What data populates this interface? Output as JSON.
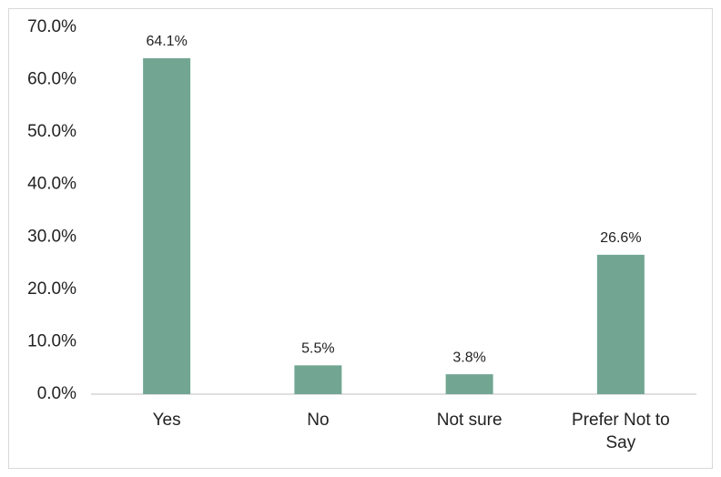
{
  "chart_data": {
    "type": "bar",
    "categories": [
      "Yes",
      "No",
      "Not sure",
      "Prefer Not to Say"
    ],
    "values": [
      64.1,
      5.5,
      3.8,
      26.6
    ],
    "value_labels": [
      "64.1%",
      "5.5%",
      "3.8%",
      "26.6%"
    ],
    "color": "#72a693",
    "ylim": [
      0,
      70
    ],
    "yticks": [
      {
        "value": 0,
        "label": "0.0%"
      },
      {
        "value": 10,
        "label": "10.0%"
      },
      {
        "value": 20,
        "label": "20.0%"
      },
      {
        "value": 30,
        "label": "30.0%"
      },
      {
        "value": 40,
        "label": "40.0%"
      },
      {
        "value": 50,
        "label": "50.0%"
      },
      {
        "value": 60,
        "label": "60.0%"
      },
      {
        "value": 70,
        "label": "70.0%"
      }
    ],
    "grid": false
  }
}
